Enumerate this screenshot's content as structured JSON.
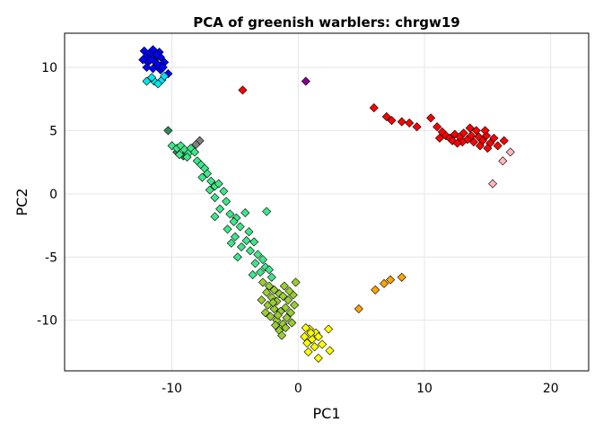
{
  "chart_data": {
    "type": "scatter",
    "title": "PCA of greenish warblers: chrgw19",
    "xlabel": "PC1",
    "ylabel": "PC2",
    "xlim": [
      -18.5,
      23
    ],
    "ylim": [
      -14,
      12.7
    ],
    "xticks": [
      -10,
      0,
      10,
      20
    ],
    "yticks": [
      10,
      5,
      0,
      -5,
      -10
    ],
    "xtick_labels": [
      "-10",
      "0",
      "10",
      "20"
    ],
    "ytick_labels": [
      "10",
      "5",
      "0",
      "-5",
      "-10"
    ],
    "grid": true,
    "marker": "diamond",
    "series": [
      {
        "color": "#0000ff",
        "points": [
          [
            -12.2,
            11.3
          ],
          [
            -11.8,
            11.1
          ],
          [
            -11.5,
            11.4
          ],
          [
            -11.0,
            11.2
          ],
          [
            -12.1,
            10.8
          ],
          [
            -11.6,
            10.9
          ],
          [
            -11.3,
            10.7
          ],
          [
            -10.9,
            10.8
          ],
          [
            -11.9,
            10.4
          ],
          [
            -11.4,
            10.5
          ],
          [
            -11.1,
            10.2
          ],
          [
            -10.6,
            10.4
          ],
          [
            -12.0,
            10.0
          ],
          [
            -11.5,
            9.9
          ],
          [
            -10.9,
            9.8
          ],
          [
            -10.3,
            9.5
          ],
          [
            -11.7,
            10.6
          ],
          [
            -11.2,
            11.0
          ],
          [
            -12.3,
            10.6
          ],
          [
            -10.7,
            10.0
          ]
        ]
      },
      {
        "color": "#00e5ee",
        "points": [
          [
            -12.0,
            8.9
          ],
          [
            -11.4,
            8.9
          ],
          [
            -10.8,
            9.0
          ],
          [
            -11.1,
            8.7
          ],
          [
            -10.6,
            9.3
          ],
          [
            -11.6,
            9.2
          ]
        ]
      },
      {
        "color": "#ff0000",
        "points": [
          [
            -4.4,
            8.2
          ],
          [
            6.0,
            6.8
          ],
          [
            7.0,
            6.1
          ],
          [
            7.4,
            5.8
          ],
          [
            8.2,
            5.7
          ],
          [
            8.8,
            5.6
          ],
          [
            9.4,
            5.3
          ],
          [
            10.5,
            6.0
          ],
          [
            11.0,
            5.3
          ],
          [
            11.4,
            4.9
          ],
          [
            11.7,
            4.6
          ],
          [
            12.0,
            4.4
          ],
          [
            12.4,
            4.7
          ],
          [
            12.8,
            4.5
          ],
          [
            13.1,
            4.8
          ],
          [
            13.4,
            4.3
          ],
          [
            13.7,
            4.6
          ],
          [
            13.9,
            4.1
          ],
          [
            14.1,
            5.0
          ],
          [
            14.3,
            4.5
          ],
          [
            14.6,
            4.2
          ],
          [
            14.9,
            4.6
          ],
          [
            15.2,
            4.0
          ],
          [
            15.5,
            4.4
          ],
          [
            15.8,
            3.8
          ],
          [
            16.3,
            4.2
          ],
          [
            12.2,
            4.2
          ],
          [
            13.0,
            4.1
          ],
          [
            14.4,
            3.8
          ],
          [
            15.0,
            3.6
          ],
          [
            13.6,
            5.2
          ],
          [
            14.8,
            5.0
          ],
          [
            12.6,
            4.0
          ],
          [
            11.2,
            4.4
          ]
        ]
      },
      {
        "color": "#ffb6c1",
        "points": [
          [
            15.4,
            0.8
          ],
          [
            16.2,
            2.6
          ],
          [
            16.8,
            3.3
          ]
        ]
      },
      {
        "color": "#8b008b",
        "points": [
          [
            0.6,
            8.9
          ]
        ]
      },
      {
        "color": "#2e8b57",
        "points": [
          [
            -10.3,
            5.0
          ],
          [
            -9.6,
            3.3
          ],
          [
            -9.1,
            3.0
          ]
        ]
      },
      {
        "color": "#808080",
        "points": [
          [
            -7.8,
            4.2
          ],
          [
            -8.1,
            3.9
          ]
        ]
      },
      {
        "color": "#3ee68a",
        "points": [
          [
            -10.0,
            3.8
          ],
          [
            -9.6,
            3.6
          ],
          [
            -9.3,
            3.8
          ],
          [
            -9.0,
            3.5
          ],
          [
            -8.7,
            3.2
          ],
          [
            -8.5,
            3.6
          ],
          [
            -8.2,
            3.3
          ],
          [
            -8.8,
            2.9
          ],
          [
            -9.4,
            3.1
          ],
          [
            -8.0,
            2.6
          ],
          [
            -7.7,
            2.3
          ],
          [
            -7.4,
            2.0
          ],
          [
            -7.2,
            1.6
          ],
          [
            -7.6,
            1.3
          ],
          [
            -6.9,
            1.0
          ],
          [
            -6.6,
            0.6
          ],
          [
            -7.0,
            0.3
          ],
          [
            -6.3,
            0.8
          ],
          [
            -5.9,
            0.2
          ],
          [
            -6.6,
            -0.3
          ],
          [
            -5.7,
            -0.6
          ],
          [
            -6.2,
            -1.2
          ],
          [
            -5.4,
            -1.6
          ],
          [
            -4.9,
            -1.9
          ],
          [
            -6.6,
            -1.8
          ],
          [
            -5.1,
            -2.2
          ],
          [
            -4.2,
            -1.5
          ],
          [
            -5.6,
            -2.8
          ],
          [
            -4.6,
            -2.6
          ],
          [
            -3.9,
            -3.0
          ],
          [
            -2.5,
            -1.4
          ],
          [
            -5.0,
            -3.4
          ],
          [
            -4.1,
            -3.7
          ],
          [
            -3.5,
            -3.8
          ],
          [
            -4.5,
            -4.2
          ],
          [
            -3.8,
            -4.5
          ],
          [
            -3.2,
            -4.8
          ],
          [
            -2.8,
            -5.2
          ],
          [
            -3.4,
            -5.5
          ],
          [
            -2.6,
            -5.8
          ],
          [
            -3.0,
            -6.2
          ],
          [
            -2.3,
            -6.0
          ],
          [
            -4.8,
            -5.0
          ],
          [
            -5.3,
            -3.9
          ],
          [
            -3.6,
            -6.4
          ],
          [
            -2.1,
            -6.6
          ]
        ]
      },
      {
        "color": "#9acd32",
        "points": [
          [
            -2.8,
            -7.0
          ],
          [
            -2.3,
            -7.3
          ],
          [
            -1.9,
            -7.6
          ],
          [
            -1.5,
            -7.9
          ],
          [
            -2.5,
            -7.8
          ],
          [
            -2.1,
            -8.2
          ],
          [
            -1.7,
            -8.5
          ],
          [
            -1.2,
            -8.1
          ],
          [
            -0.8,
            -8.4
          ],
          [
            -2.4,
            -8.8
          ],
          [
            -1.9,
            -9.1
          ],
          [
            -1.4,
            -9.3
          ],
          [
            -1.0,
            -9.0
          ],
          [
            -0.6,
            -9.4
          ],
          [
            -2.2,
            -9.7
          ],
          [
            -1.7,
            -10.0
          ],
          [
            -1.2,
            -10.3
          ],
          [
            -0.9,
            -9.8
          ],
          [
            -0.5,
            -10.2
          ],
          [
            -1.5,
            -10.8
          ],
          [
            -1.0,
            -10.6
          ],
          [
            -2.6,
            -9.4
          ],
          [
            -1.3,
            -11.2
          ],
          [
            -0.2,
            -7.0
          ],
          [
            -0.4,
            -8.0
          ],
          [
            -1.1,
            -7.3
          ],
          [
            -2.0,
            -8.6
          ],
          [
            -1.6,
            -9.6
          ],
          [
            -0.7,
            -7.7
          ],
          [
            -0.3,
            -8.8
          ],
          [
            -2.9,
            -8.4
          ],
          [
            -1.8,
            -10.4
          ]
        ]
      },
      {
        "color": "#ffff00",
        "points": [
          [
            0.5,
            -11.3
          ],
          [
            0.9,
            -10.7
          ],
          [
            1.4,
            -11.0
          ],
          [
            0.7,
            -11.8
          ],
          [
            1.1,
            -11.5
          ],
          [
            1.6,
            -11.3
          ],
          [
            1.3,
            -12.1
          ],
          [
            0.8,
            -12.5
          ],
          [
            1.9,
            -11.9
          ],
          [
            2.5,
            -12.4
          ],
          [
            2.4,
            -10.7
          ],
          [
            1.6,
            -13.0
          ],
          [
            1.0,
            -11.0
          ],
          [
            0.6,
            -10.6
          ]
        ]
      },
      {
        "color": "#ffa500",
        "points": [
          [
            4.8,
            -9.1
          ],
          [
            6.1,
            -7.6
          ],
          [
            6.8,
            -7.1
          ],
          [
            7.3,
            -6.8
          ],
          [
            8.2,
            -6.6
          ]
        ]
      }
    ]
  }
}
